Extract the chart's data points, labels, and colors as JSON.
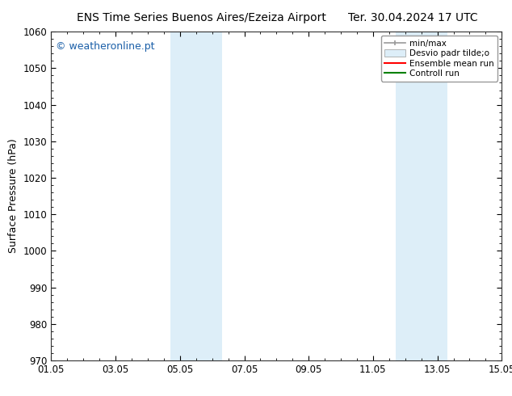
{
  "title_left": "ENS Time Series Buenos Aires/Ezeiza Airport",
  "title_right": "Ter. 30.04.2024 17 UTC",
  "ylabel": "Surface Pressure (hPa)",
  "ylim": [
    970,
    1060
  ],
  "yticks": [
    970,
    980,
    990,
    1000,
    1010,
    1020,
    1030,
    1040,
    1050,
    1060
  ],
  "xtick_labels": [
    "01.05",
    "03.05",
    "05.05",
    "07.05",
    "09.05",
    "11.05",
    "13.05",
    "15.05"
  ],
  "xtick_positions": [
    0,
    2,
    4,
    6,
    8,
    10,
    12,
    14
  ],
  "x_total_days": 14,
  "shaded_regions": [
    {
      "x_start": 3.7,
      "x_end": 5.3,
      "color": "#ddeef8"
    },
    {
      "x_start": 10.7,
      "x_end": 12.3,
      "color": "#ddeef8"
    }
  ],
  "watermark_text": "© weatheronline.pt",
  "watermark_color": "#1a5fa8",
  "bg_color": "#ffffff",
  "plot_bg_color": "#ffffff",
  "grid_color": "#bbbbbb",
  "legend_items": [
    {
      "label": "min/max",
      "color": "#aaaaaa",
      "style": "line_with_cap"
    },
    {
      "label": "Desvio padr tilde;o",
      "color": "#ddeef8",
      "style": "filled_box"
    },
    {
      "label": "Ensemble mean run",
      "color": "#ff0000",
      "style": "line"
    },
    {
      "label": "Controll run",
      "color": "#008000",
      "style": "line"
    }
  ],
  "title_fontsize": 10,
  "tick_fontsize": 8.5,
  "ylabel_fontsize": 9,
  "watermark_fontsize": 9
}
